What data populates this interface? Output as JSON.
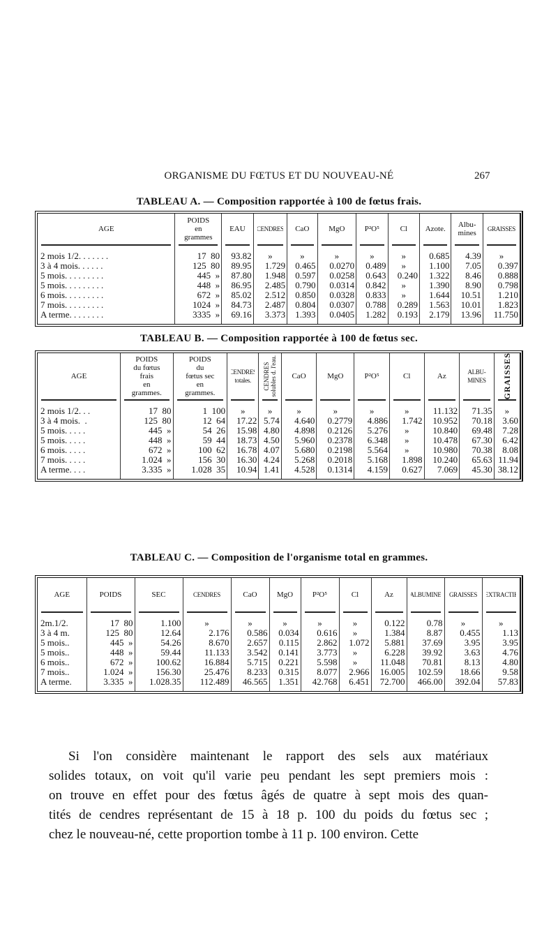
{
  "header": {
    "running_title": "ORGANISME DU FŒTUS ET DU NOUVEAU-NÉ",
    "page_number": "267"
  },
  "tables": [
    {
      "title": "TABLEAU A. — Composition rapportée à 100 de fœtus frais.",
      "headers": [
        "AGE",
        "POIDS\nen\ngrammes",
        "EAU",
        "CENDRES",
        "CaO",
        "MgO",
        "P²O⁵",
        "Cl",
        "Azote.",
        "Albu-\nmines",
        "GRAISSES"
      ],
      "rows": [
        [
          "2 mois 1/2. . . . . . .",
          "17  80",
          "93.82",
          "»",
          "»",
          "»",
          "»",
          "»",
          "0.685",
          "4.39",
          "»"
        ],
        [
          "3 à 4 mois. . . . . .",
          "125  80",
          "89.95",
          "1.729",
          "0.465",
          "0.0270",
          "0.489",
          "»",
          "1.100",
          "7.05",
          "0.397"
        ],
        [
          "5 mois. . . . . . . . .",
          "445  »",
          "87.80",
          "1.948",
          "0.597",
          "0.0258",
          "0.643",
          "0.240",
          "1.322",
          "8.46",
          "0.888"
        ],
        [
          "5 mois. . . . . . . . .",
          "448  »",
          "86.95",
          "2.485",
          "0.790",
          "0.0314",
          "0.842",
          "»",
          "1.390",
          "8.90",
          "0.798"
        ],
        [
          "6 mois. . . . . . . . .",
          "672  »",
          "85.02",
          "2.512",
          "0.850",
          "0.0328",
          "0.833",
          "»",
          "1.644",
          "10.51",
          "1.210"
        ],
        [
          "7 mois. . . . . . . . .",
          "1024  »",
          "84.73",
          "2.487",
          "0.804",
          "0.0307",
          "0.788",
          "0.289",
          "1.563",
          "10.01",
          "1.823"
        ],
        [
          "A terme. . . . . . . .",
          "3335  »",
          "69.16",
          "3.373",
          "1.393",
          "0.0405",
          "1.282",
          "0.193",
          "2.179",
          "13.96",
          "11.750"
        ]
      ]
    },
    {
      "title": "TABLEAU B. — Composition rapportée à 100 de fœtus sec.",
      "headers": [
        "AGE",
        "POIDS\ndu fœtus\nfrais\nen\ngrammes.",
        "POIDS\ndu\nfœtus sec\nen\ngrammes.",
        "CENDRES\ntotales.",
        "CENDRES\nsolubles d. l'eau.",
        "CaO",
        "MgO",
        "P²O⁵",
        "Cl",
        "Az",
        "ALBU-\nMINES",
        "GRAISSES"
      ],
      "rows": [
        [
          "2 mois 1/2. . .",
          "17  80",
          "1  100",
          "»",
          "»",
          "»",
          "»",
          "»",
          "»",
          "11.132",
          "71.35",
          "»"
        ],
        [
          "3 à 4 mois.  .",
          "125  80",
          "12  64",
          "17.22",
          "5.74",
          "4.640",
          "0.2779",
          "4.886",
          "1.742",
          "10.952",
          "70.18",
          "3.60"
        ],
        [
          "5 mois. . . . .",
          "445  »",
          "54  26",
          "15.98",
          "4.80",
          "4.898",
          "0.2126",
          "5.276",
          "»",
          "10.840",
          "69.48",
          "7.28"
        ],
        [
          "5 mois. . . . .",
          "448  »",
          "59  44",
          "18.73",
          "4.50",
          "5.960",
          "0.2378",
          "6.348",
          "»",
          "10.478",
          "67.30",
          "6.42"
        ],
        [
          "6 mois. . . . .",
          "672  »",
          "100  62",
          "16.78",
          "4.07",
          "5.680",
          "0.2198",
          "5.564",
          "»",
          "10.980",
          "70.38",
          "8.08"
        ],
        [
          "7 mois. . . . .",
          "1.024  »",
          "156  30",
          "16.30",
          "4.24",
          "5.268",
          "0.2018",
          "5.168",
          "1.898",
          "10.240",
          "65.63",
          "11.94"
        ],
        [
          "A terme. . . .",
          "3.335  »",
          "1.028  35",
          "10.94",
          "1.41",
          "4.528",
          "0.1314",
          "4.159",
          "0.627",
          "7.069",
          "45.30",
          "38.12"
        ]
      ]
    },
    {
      "title": "TABLEAU C. — Composition de l'organisme total en grammes.",
      "headers": [
        "AGE",
        "POIDS",
        "SEC",
        "CENDRES",
        "CaO",
        "MgO",
        "P²O⁵",
        "Cl",
        "Az",
        "ALBUMINE",
        "GRAISSES",
        "EXTRACTIF"
      ],
      "rows": [
        [
          "2m.1/2.",
          "17  80",
          "1.100",
          "»",
          "»",
          "»",
          "»",
          "»",
          "0.122",
          "0.78",
          "»",
          "»"
        ],
        [
          "3 à 4 m.",
          "125  80",
          "12.64",
          "2.176",
          "0.586",
          "0.034",
          "0.616",
          "»",
          "1.384",
          "8.87",
          "0.455",
          "1.13"
        ],
        [
          "5 mois..",
          "445  »",
          "54.26",
          "8.670",
          "2.657",
          "0.115",
          "2.862",
          "1.072",
          "5.881",
          "37.69",
          "3.95",
          "3.95"
        ],
        [
          "5 mois..",
          "448  »",
          "59.44",
          "11.133",
          "3.542",
          "0.141",
          "3.773",
          "»",
          "6.228",
          "39.92",
          "3.63",
          "4.76"
        ],
        [
          "6 mois..",
          "672  »",
          "100.62",
          "16.884",
          "5.715",
          "0.221",
          "5.598",
          "»",
          "11.048",
          "70.81",
          "8.13",
          "4.80"
        ],
        [
          "7 mois..",
          "1.024  »",
          "156.30",
          "25.476",
          "8.233",
          "0.315",
          "8.077",
          "2.966",
          "16.005",
          "102.59",
          "18.66",
          "9.58"
        ],
        [
          "A terme.",
          "3.335  »",
          "1.028.35",
          "112.489",
          "46.565",
          "1.351",
          "42.768",
          "6.451",
          "72.700",
          "466.00",
          "392.04",
          "57.83"
        ]
      ]
    }
  ],
  "paragraph": {
    "lines": [
      "Si l'on considère maintenant le rapport des sels aux matériaux",
      "solides totaux, on voit qu'il varie peu pendant les sept premiers mois :",
      "on trouve en effet pour des fœtus âgés de quatre à sept mois des quan-",
      "tités de cendres représentant de 15 à 18 p. 100 du poids du fœtus sec ;",
      "chez le nouveau-né, cette proportion tombe à 11 p. 100 environ. Cette"
    ]
  }
}
